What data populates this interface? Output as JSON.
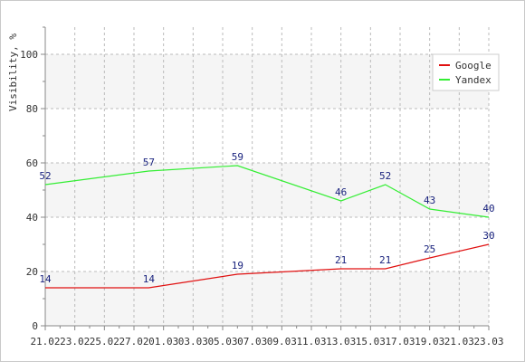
{
  "chart_data": {
    "type": "line",
    "title": "",
    "xlabel": "",
    "ylabel": "Visibility, %",
    "x_ticks": [
      "21.02",
      "23.02",
      "25.02",
      "27.02",
      "01.03",
      "03.03",
      "05.03",
      "07.03",
      "09.03",
      "11.03",
      "13.03",
      "15.03",
      "17.03",
      "19.03",
      "21.03",
      "23.03"
    ],
    "y_ticks": [
      0,
      20,
      40,
      60,
      80,
      100
    ],
    "ylim": [
      0,
      110
    ],
    "grid": true,
    "legend_position": "top-right",
    "series": [
      {
        "name": "Google",
        "color": "#e01010",
        "points": [
          {
            "x": "21.02",
            "y": 14
          },
          {
            "x": "28.02",
            "y": 14
          },
          {
            "x": "06.03",
            "y": 19
          },
          {
            "x": "13.03",
            "y": 21
          },
          {
            "x": "16.03",
            "y": 21
          },
          {
            "x": "19.03",
            "y": 25
          },
          {
            "x": "23.03",
            "y": 30
          }
        ]
      },
      {
        "name": "Yandex",
        "color": "#33ee33",
        "points": [
          {
            "x": "21.02",
            "y": 52
          },
          {
            "x": "28.02",
            "y": 57
          },
          {
            "x": "06.03",
            "y": 59
          },
          {
            "x": "13.03",
            "y": 46
          },
          {
            "x": "16.03",
            "y": 52
          },
          {
            "x": "19.03",
            "y": 43
          },
          {
            "x": "23.03",
            "y": 40
          }
        ]
      }
    ]
  }
}
